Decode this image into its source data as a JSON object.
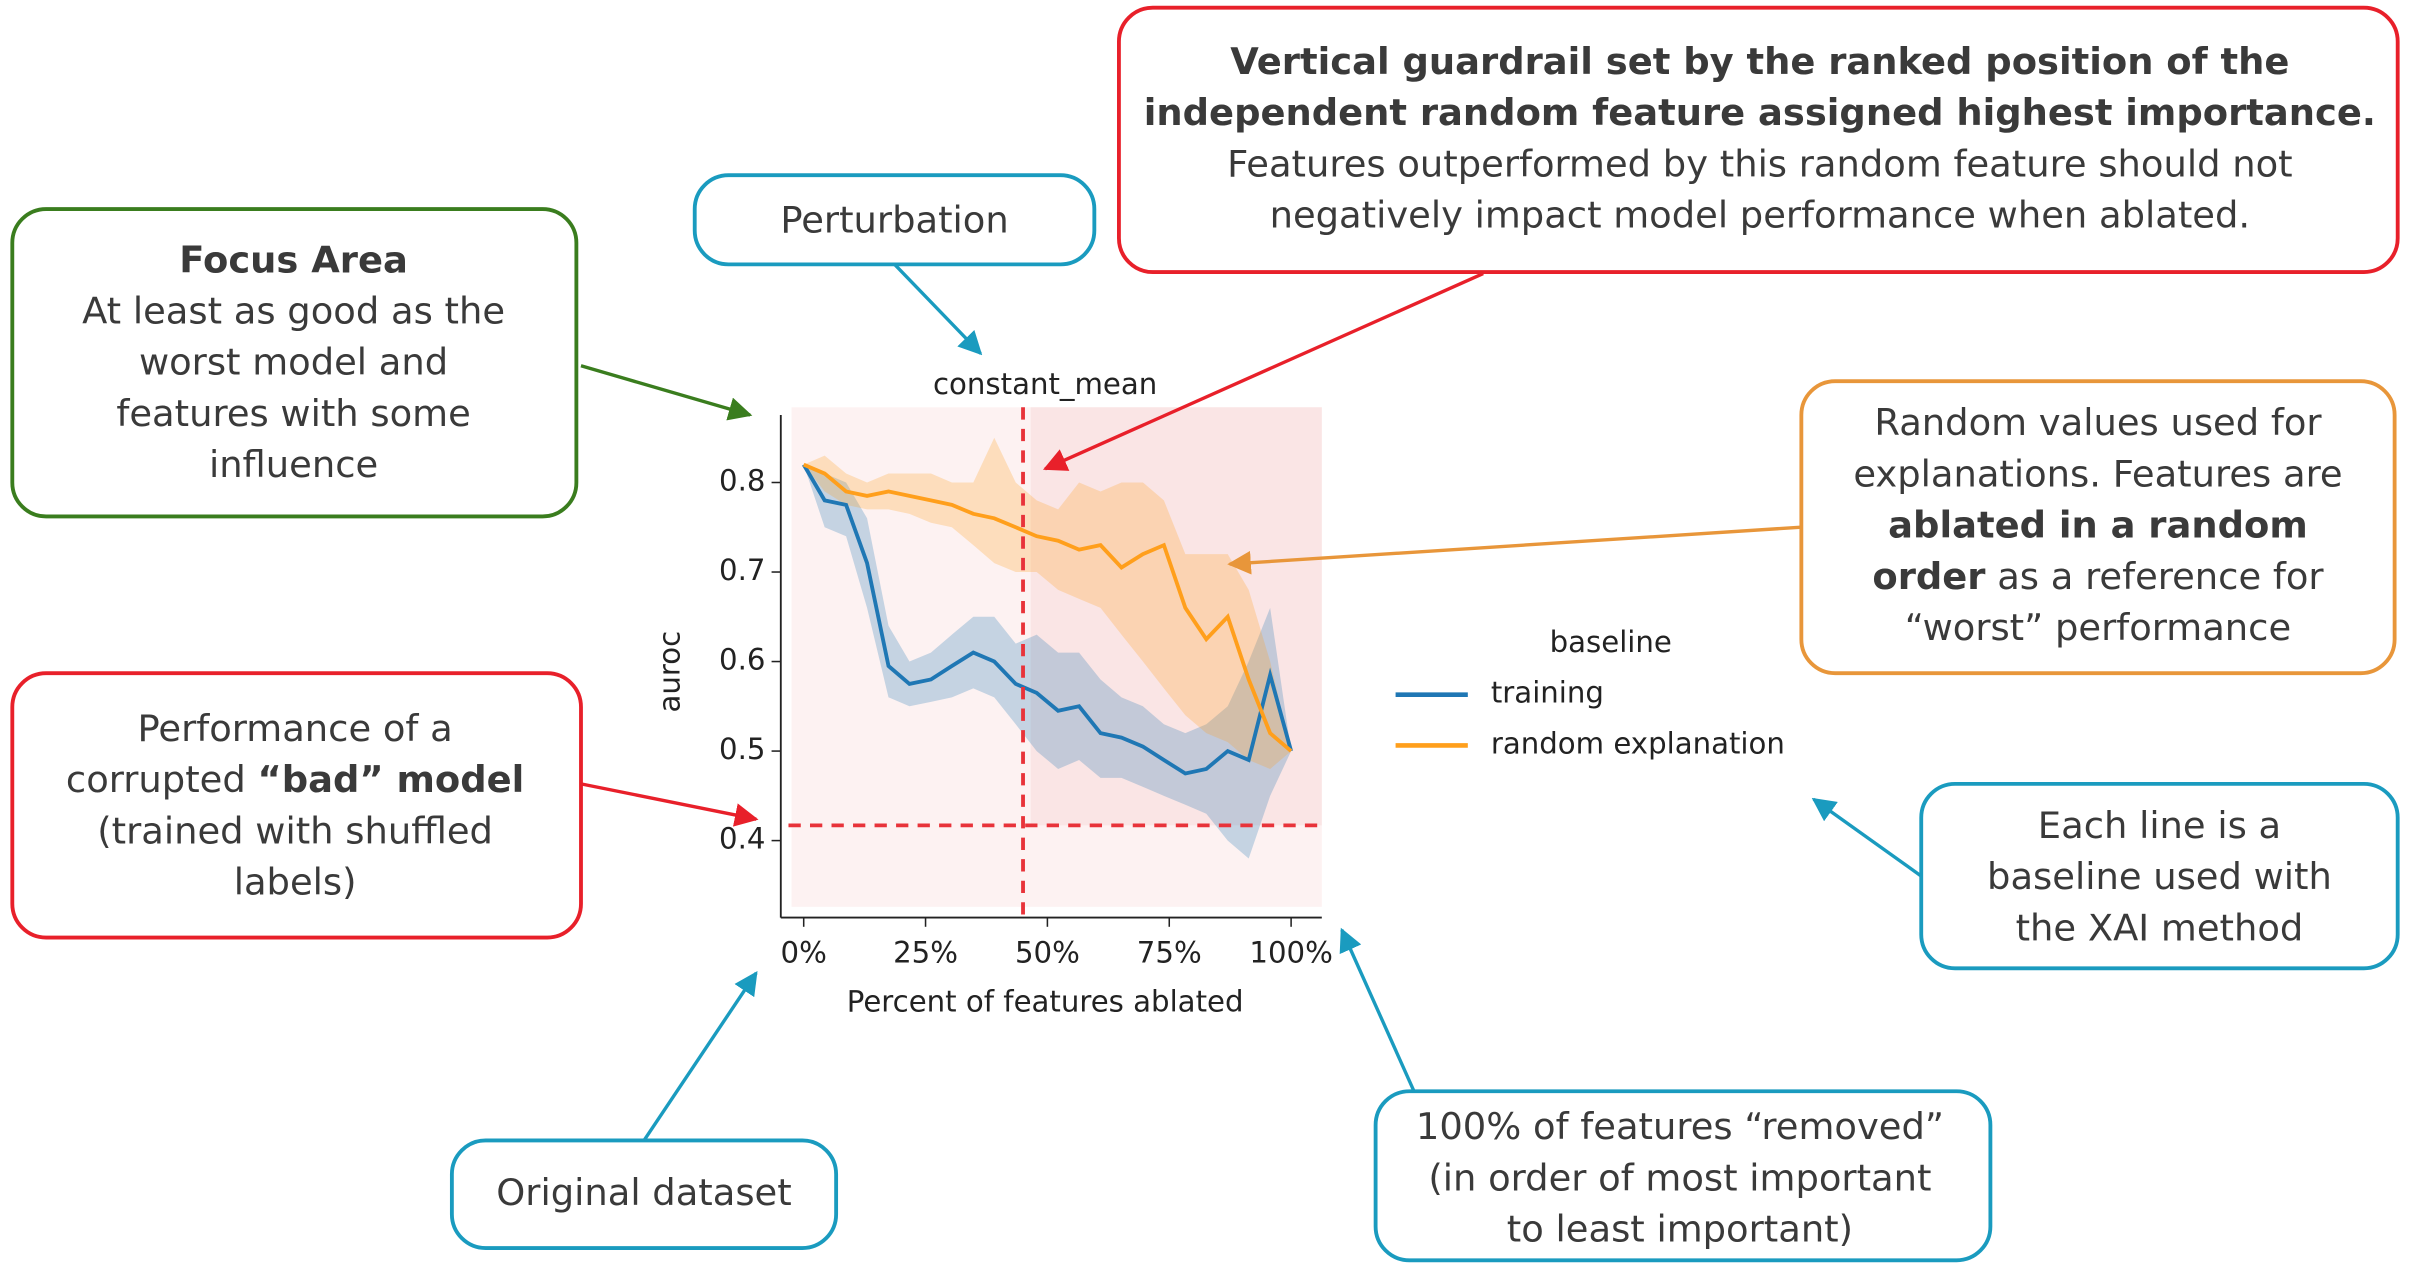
{
  "chart_data": {
    "type": "line",
    "title": "constant_mean",
    "x_label": "Percent of features ablated",
    "y_label": "auroc",
    "x": [
      0,
      4.3,
      8.7,
      13,
      17.4,
      21.7,
      26.1,
      30.4,
      34.8,
      39.1,
      43.5,
      47.8,
      52.2,
      56.5,
      60.9,
      65.2,
      69.6,
      73.9,
      78.3,
      82.6,
      87,
      91.3,
      95.7,
      100
    ],
    "series": [
      {
        "name": "training",
        "color": "#1f77b4",
        "values": [
          0.82,
          0.78,
          0.775,
          0.71,
          0.595,
          0.575,
          0.58,
          0.595,
          0.61,
          0.6,
          0.575,
          0.565,
          0.545,
          0.55,
          0.52,
          0.515,
          0.505,
          0.49,
          0.475,
          0.48,
          0.5,
          0.49,
          0.585,
          0.5
        ],
        "lower": [
          0.82,
          0.75,
          0.74,
          0.66,
          0.56,
          0.55,
          0.555,
          0.56,
          0.57,
          0.56,
          0.53,
          0.5,
          0.48,
          0.49,
          0.47,
          0.47,
          0.46,
          0.45,
          0.44,
          0.43,
          0.4,
          0.38,
          0.45,
          0.5
        ],
        "upper": [
          0.82,
          0.81,
          0.8,
          0.76,
          0.64,
          0.6,
          0.61,
          0.63,
          0.65,
          0.65,
          0.62,
          0.63,
          0.61,
          0.61,
          0.58,
          0.56,
          0.55,
          0.53,
          0.52,
          0.53,
          0.55,
          0.6,
          0.66,
          0.5
        ]
      },
      {
        "name": "random explanation",
        "color": "#ff9f1c",
        "values": [
          0.82,
          0.81,
          0.79,
          0.785,
          0.79,
          0.785,
          0.78,
          0.775,
          0.765,
          0.76,
          0.75,
          0.74,
          0.735,
          0.725,
          0.73,
          0.705,
          0.72,
          0.73,
          0.66,
          0.625,
          0.65,
          0.58,
          0.52,
          0.5
        ],
        "lower": [
          0.82,
          0.79,
          0.775,
          0.77,
          0.77,
          0.765,
          0.755,
          0.75,
          0.73,
          0.71,
          0.7,
          0.7,
          0.68,
          0.67,
          0.66,
          0.63,
          0.6,
          0.57,
          0.54,
          0.52,
          0.51,
          0.49,
          0.48,
          0.5
        ],
        "upper": [
          0.82,
          0.83,
          0.81,
          0.8,
          0.81,
          0.81,
          0.81,
          0.8,
          0.8,
          0.85,
          0.8,
          0.78,
          0.77,
          0.8,
          0.79,
          0.8,
          0.8,
          0.78,
          0.72,
          0.72,
          0.72,
          0.68,
          0.6,
          0.5
        ]
      }
    ],
    "legend_title": "baseline",
    "xlim": [
      -4.7,
      106.3
    ],
    "ylim": [
      0.314,
      0.884
    ],
    "xticks": [
      {
        "value": 0,
        "label": "0%"
      },
      {
        "value": 25,
        "label": "25%"
      },
      {
        "value": 50,
        "label": "50%"
      },
      {
        "value": 75,
        "label": "75%"
      },
      {
        "value": 100,
        "label": "100%"
      }
    ],
    "yticks": [
      0.4,
      0.5,
      0.6,
      0.7,
      0.8
    ],
    "guardrail_x": 45,
    "bad_model_auroc": 0.417,
    "guardrail_color": "#e8333a",
    "annotations": [
      {
        "color": "#3a7d1e",
        "lines": [
          [
            {
              "text": "Focus Area",
              "bold": true
            }
          ],
          [
            "At least as good as the"
          ],
          [
            "worst model and"
          ],
          [
            "features with some"
          ],
          [
            "influence"
          ]
        ]
      },
      {
        "color": "#1a9bbf",
        "lines": [
          [
            "Perturbation"
          ]
        ]
      },
      {
        "color": "#e8202a",
        "lines": [
          [
            {
              "text": "Vertical guardrail set by the ranked position of the",
              "bold": true
            }
          ],
          [
            {
              "text": "independent random feature assigned highest importance.",
              "bold": true
            }
          ],
          [
            "Features outperformed by this random feature should not"
          ],
          [
            "negatively impact model performance when ablated."
          ]
        ]
      },
      {
        "color": "#e8963a",
        "lines": [
          [
            "Random values used for"
          ],
          [
            "explanations. Features are"
          ],
          [
            {
              "text": "ablated in a random",
              "bold": true
            }
          ],
          [
            {
              "text": "order",
              "bold": true
            },
            " as a reference for"
          ],
          [
            "“worst” performance"
          ]
        ]
      },
      {
        "color": "#e8202a",
        "lines": [
          [
            "Performance of a"
          ],
          [
            "corrupted ",
            {
              "text": "“bad” model",
              "bold": true
            }
          ],
          [
            "(trained with shuffled"
          ],
          [
            "labels)"
          ]
        ]
      },
      {
        "color": "#1a9bbf",
        "lines": [
          [
            "Each line is a"
          ],
          [
            "baseline used with"
          ],
          [
            "the XAI method"
          ]
        ]
      },
      {
        "color": "#1a9bbf",
        "lines": [
          [
            "Original dataset"
          ]
        ]
      },
      {
        "color": "#1a9bbf",
        "lines": [
          [
            "100% of features “removed”"
          ],
          [
            "(in order of most important"
          ],
          [
            "to least important)"
          ]
        ]
      }
    ]
  }
}
